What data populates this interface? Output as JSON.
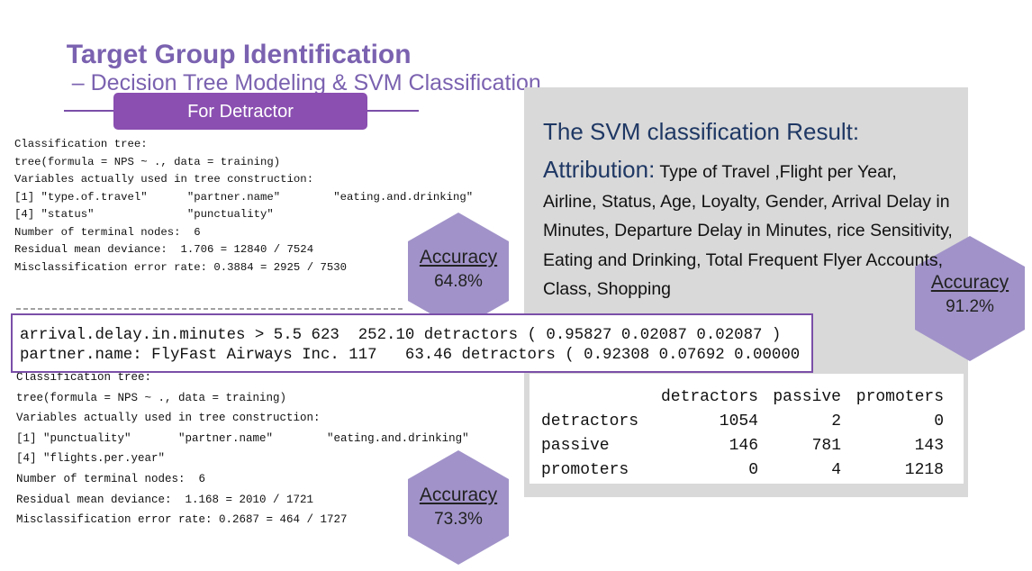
{
  "header": {
    "title": "Target Group Identification",
    "subtitle": "– Decision Tree Modeling & SVM Classification"
  },
  "detractor_label": "For Detractor",
  "tree1": {
    "lines": [
      "Classification tree:",
      "tree(formula = NPS ~ ., data = training)",
      "Variables actually used in tree construction:",
      "[1] \"type.of.travel\"      \"partner.name\"        \"eating.and.drinking\"",
      "[4] \"status\"              \"punctuality\"",
      "Number of terminal nodes:  6",
      "Residual mean deviance:  1.706 = 12840 / 7524",
      "Misclassification error rate: 0.3884 = 2925 / 7530"
    ],
    "accuracy_label": "Accuracy",
    "accuracy": "64.8%"
  },
  "highlight": {
    "lines": [
      "arrival.delay.in.minutes > 5.5 623  252.10 detractors ( 0.95827 0.02087 0.02087 )",
      "partner.name: FlyFast Airways Inc. 117   63.46 detractors ( 0.92308 0.07692 0.00000"
    ]
  },
  "tree2": {
    "lines": [
      "Classification tree:",
      "tree(formula = NPS ~ ., data = training)",
      "Variables actually used in tree construction:",
      "[1] \"punctuality\"       \"partner.name\"        \"eating.and.drinking\"",
      "[4] \"flights.per.year\"",
      "Number of terminal nodes:  6",
      "Residual mean deviance:  1.168 = 2010 / 1721",
      "Misclassification error rate: 0.2687 = 464 / 1727"
    ],
    "accuracy_label": "Accuracy",
    "accuracy": "73.3%"
  },
  "svm": {
    "heading": "The SVM classification Result:",
    "attribution_label": "Attribution:",
    "attribution": "Type of Travel ,Flight per Year, Airline, Status, Age, Loyalty, Gender, Arrival Delay in Minutes, Departure Delay in Minutes, rice Sensitivity, Eating and Drinking, Total Frequent Flyer Accounts, Class, Shopping",
    "accuracy_label": "Accuracy",
    "accuracy": "91.2%"
  },
  "table": {
    "columns": [
      "detractors",
      "passive",
      "promoters"
    ],
    "rows": [
      [
        "detractors",
        1054,
        2,
        0
      ],
      [
        "passive",
        146,
        781,
        143
      ],
      [
        "promoters",
        0,
        4,
        1218
      ]
    ]
  }
}
